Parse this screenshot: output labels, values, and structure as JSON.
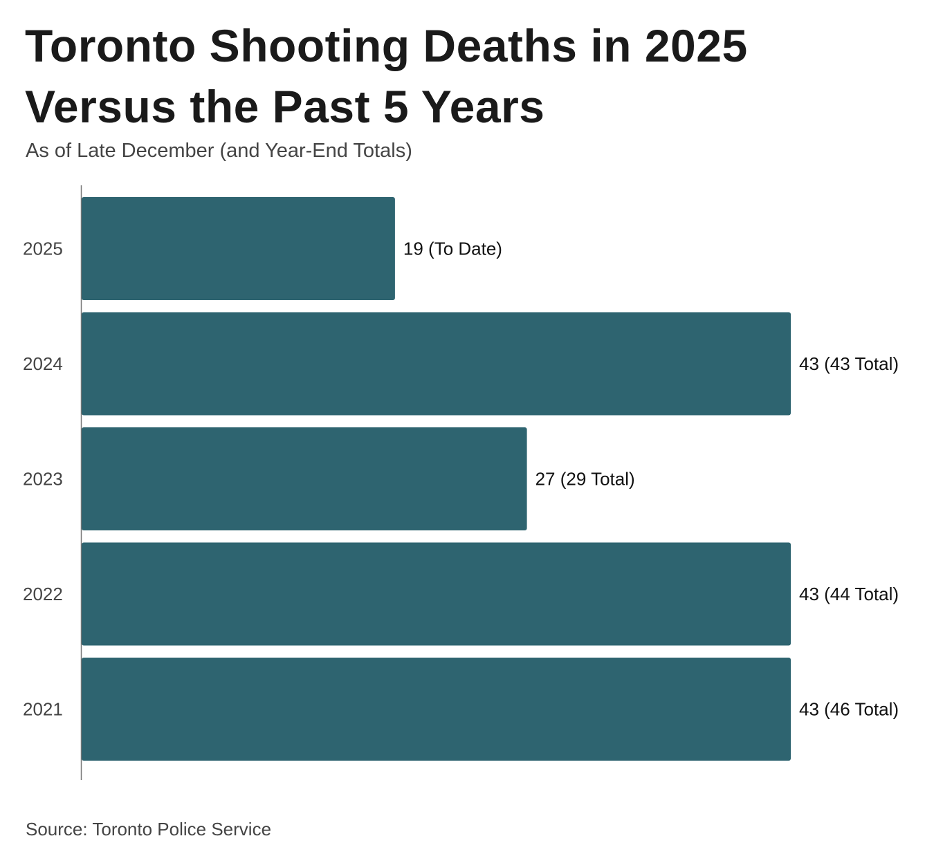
{
  "chart_data": {
    "type": "bar",
    "orientation": "horizontal",
    "title": "Toronto Shooting Deaths in 2025 Versus the Past 5 Years",
    "subtitle": "As of Late December (and Year-End Totals)",
    "source": "Source: Toronto Police Service",
    "categories": [
      "2025",
      "2024",
      "2023",
      "2022",
      "2021"
    ],
    "values": [
      19,
      43,
      27,
      43,
      43
    ],
    "data_labels": [
      "19 (To Date)",
      "43 (43 Total)",
      "27 (29 Total)",
      "43 (44 Total)",
      "43 (46 Total)"
    ],
    "xlim": [
      0,
      43
    ],
    "grid": false,
    "bar_color": "#2e6470"
  }
}
